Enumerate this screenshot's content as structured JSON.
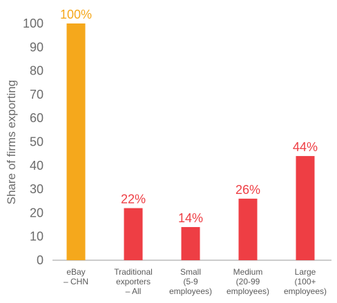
{
  "chart_data": {
    "type": "bar",
    "title": "",
    "xlabel": "",
    "ylabel": "Share of firms exporting",
    "ylim": [
      0,
      100
    ],
    "yticks": [
      "0",
      "10",
      "20",
      "30",
      "40",
      "50",
      "60",
      "70",
      "80",
      "90",
      "100"
    ],
    "grid": false,
    "categories": [
      [
        "eBay",
        "– CHN"
      ],
      [
        "Traditional",
        "exporters",
        "– All"
      ],
      [
        "Small",
        "(5-9",
        "employees)"
      ],
      [
        "Medium",
        "(20-99",
        "employees)"
      ],
      [
        "Large",
        "(100+",
        "employees)"
      ]
    ],
    "values": [
      100,
      22,
      14,
      26,
      44
    ],
    "data_labels": [
      "100%",
      "22%",
      "14%",
      "26%",
      "44%"
    ],
    "colors": [
      "#F5A81C",
      "#EE3E44",
      "#EE3E44",
      "#EE3E44",
      "#EE3E44"
    ],
    "label_colors": [
      "#F5A81C",
      "#EE3E44",
      "#EE3E44",
      "#EE3E44",
      "#EE3E44"
    ]
  }
}
